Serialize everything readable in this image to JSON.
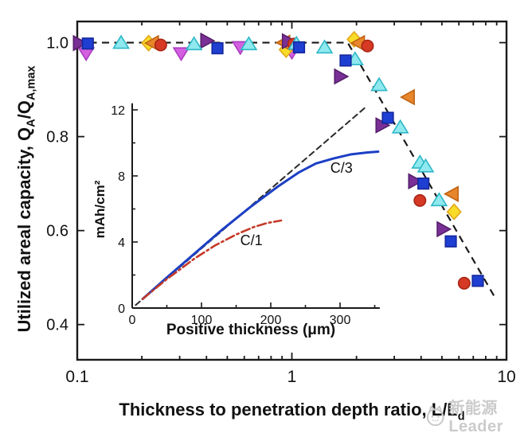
{
  "figure": {
    "watermark": {
      "text": "新能源Leader",
      "color": "#c9c9c9"
    }
  },
  "axes": {
    "y": {
      "label_pre": "Utilized areal capacity, Q",
      "label_sub1": "A",
      "label_mid": "/Q",
      "label_sub2": "A,max"
    },
    "x": {
      "label_pre": "Thickness to penetration depth ratio, L/L",
      "label_sub": "d"
    }
  },
  "chart_data": {
    "type": "scatter",
    "main": {
      "x_scale": "log",
      "xlim": [
        0.1,
        10
      ],
      "ylim": [
        0.325,
        1.045
      ],
      "grid": false,
      "x_ticks": {
        "major": [
          0.1,
          1,
          10
        ],
        "labels": [
          "0.1",
          "1",
          "10"
        ],
        "minor": [
          0.2,
          0.3,
          0.4,
          0.5,
          0.6,
          0.7,
          0.8,
          0.9,
          2,
          3,
          4,
          5,
          6,
          7,
          8,
          9
        ]
      },
      "y_ticks": {
        "major": [
          0.4,
          0.6,
          0.8,
          1.0
        ],
        "labels": [
          "0.4",
          "0.6",
          "0.8",
          "1.0"
        ]
      },
      "trend_line": {
        "style": "dashed",
        "color": "#1a1a1a",
        "points": [
          [
            0.1,
            1.0
          ],
          [
            1.82,
            1.0
          ],
          [
            8.9,
            0.455
          ]
        ]
      },
      "series": [
        {
          "name": "magenta-down-triangle",
          "marker": "triangle-down",
          "color": "#d45fe0",
          "edge": "#a93bbf",
          "points": [
            [
              0.11,
              0.977
            ],
            [
              0.305,
              0.977
            ],
            [
              0.575,
              0.99
            ],
            [
              1.0,
              0.98
            ]
          ]
        },
        {
          "name": "yellow-diamond",
          "marker": "diamond",
          "color": "#f8dc28",
          "edge": "#e2a81c",
          "points": [
            [
              0.215,
              0.999
            ],
            [
              0.94,
              0.985
            ],
            [
              1.95,
              1.007
            ],
            [
              5.7,
              0.64
            ]
          ]
        },
        {
          "name": "orange-left-triangle",
          "marker": "triangle-left",
          "color": "#e8862b",
          "edge": "#c06312",
          "points": [
            [
              0.225,
              0.999
            ],
            [
              0.92,
              1.0
            ],
            [
              2.05,
              0.999
            ],
            [
              3.5,
              0.884
            ],
            [
              5.6,
              0.678
            ]
          ]
        },
        {
          "name": "purple-right-triangle",
          "marker": "triangle-right",
          "color": "#7a2f96",
          "edge": "#551f6b",
          "points": [
            [
              0.102,
              0.999
            ],
            [
              0.4,
              1.004
            ],
            [
              0.96,
              1.003
            ],
            [
              1.68,
              0.928
            ],
            [
              2.62,
              0.824
            ],
            [
              3.72,
              0.705
            ],
            [
              5.05,
              0.603
            ]
          ]
        },
        {
          "name": "red-circle",
          "marker": "circle",
          "color": "#d63a24",
          "edge": "#a82415",
          "points": [
            [
              0.245,
              0.995
            ],
            [
              1.02,
              0.997
            ],
            [
              2.25,
              0.993
            ],
            [
              3.95,
              0.664
            ],
            [
              6.35,
              0.488
            ]
          ]
        },
        {
          "name": "cyan-up-triangle",
          "marker": "triangle-up",
          "color": "#8fe9ee",
          "edge": "#2eb8c8",
          "points": [
            [
              0.16,
              1.0
            ],
            [
              0.35,
              0.997
            ],
            [
              0.63,
              0.997
            ],
            [
              1.05,
              0.998
            ],
            [
              1.42,
              0.99
            ],
            [
              1.97,
              0.965
            ],
            [
              2.55,
              0.91
            ],
            [
              3.2,
              0.82
            ],
            [
              3.95,
              0.745
            ],
            [
              4.2,
              0.737
            ],
            [
              4.85,
              0.665
            ]
          ]
        },
        {
          "name": "blue-square",
          "marker": "square",
          "color": "#1e3fd2",
          "edge": "#14279b",
          "points": [
            [
              0.112,
              0.998
            ],
            [
              0.45,
              0.988
            ],
            [
              1.08,
              0.99
            ],
            [
              1.78,
              0.962
            ],
            [
              2.8,
              0.84
            ],
            [
              4.1,
              0.7
            ],
            [
              5.5,
              0.577
            ],
            [
              7.35,
              0.493
            ]
          ]
        }
      ]
    },
    "inset": {
      "xlabel": "Positive thickness (μm)",
      "ylabel": "mAh/cm²",
      "xlim": [
        0,
        355
      ],
      "ylim": [
        0,
        12.4
      ],
      "x_ticks": {
        "major": [
          0,
          100,
          200,
          300
        ],
        "labels": [
          "0",
          "100",
          "200",
          "300"
        ],
        "minor": [
          50,
          150,
          250,
          350
        ]
      },
      "y_ticks": {
        "major": [
          0,
          4,
          8,
          12
        ],
        "labels": [
          "0",
          "4",
          "8",
          "12"
        ],
        "minor": [
          2,
          6,
          10
        ]
      },
      "curves": [
        {
          "name": "theoretical-guide",
          "style": "dashed",
          "color": "#2a2a2a",
          "width": 2,
          "points": [
            [
              5,
              0.18
            ],
            [
              338,
              12.2
            ]
          ]
        },
        {
          "name": "C/3",
          "style": "solid",
          "color": "#1c3fc4",
          "width": 3,
          "points": [
            [
              15,
              0.55
            ],
            [
              50,
              1.85
            ],
            [
              90,
              3.3
            ],
            [
              130,
              4.75
            ],
            [
              170,
              6.1
            ],
            [
              210,
              7.35
            ],
            [
              240,
              8.2
            ],
            [
              265,
              8.75
            ],
            [
              290,
              9.05
            ],
            [
              315,
              9.3
            ],
            [
              340,
              9.42
            ],
            [
              355,
              9.47
            ]
          ]
        },
        {
          "name": "C/1",
          "style": "dashdot",
          "color": "#c43a28",
          "width": 2.6,
          "points": [
            [
              15,
              0.55
            ],
            [
              50,
              1.75
            ],
            [
              90,
              3.0
            ],
            [
              120,
              3.8
            ],
            [
              150,
              4.45
            ],
            [
              175,
              4.9
            ],
            [
              195,
              5.15
            ],
            [
              215,
              5.3
            ]
          ]
        }
      ],
      "curve_labels": [
        {
          "text": "C/3",
          "x": 302,
          "y": 8.2
        },
        {
          "text": "C/1",
          "x": 172,
          "y": 3.8
        }
      ]
    }
  }
}
